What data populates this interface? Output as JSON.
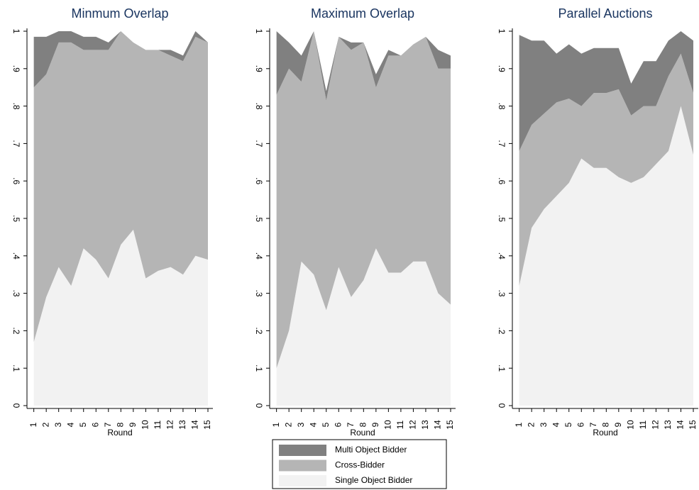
{
  "chart_data": [
    {
      "type": "area",
      "title": "Minmum Overlap",
      "xlabel": "Round",
      "x": [
        1,
        2,
        3,
        4,
        5,
        6,
        7,
        8,
        9,
        10,
        11,
        12,
        13,
        14,
        15
      ],
      "xlim": [
        0.45,
        15.4
      ],
      "ylim": [
        0,
        1
      ],
      "yticks": [
        0,
        {
          "value": 0.1,
          "label": ".1"
        },
        {
          "value": 0.2,
          "label": ".2"
        },
        {
          "value": 0.3,
          "label": ".3"
        },
        {
          "value": 0.4,
          "label": ".4"
        },
        {
          "value": 0.5,
          "label": ".5"
        },
        {
          "value": 0.6,
          "label": ".6"
        },
        {
          "value": 0.7,
          "label": ".7"
        },
        {
          "value": 0.8,
          "label": ".8"
        },
        {
          "value": 0.9,
          "label": ".9"
        },
        1
      ],
      "series": [
        {
          "name": "Single Object Bidder",
          "color": "#f2f2f2",
          "values": [
            0.17,
            0.29,
            0.37,
            0.32,
            0.42,
            0.39,
            0.34,
            0.43,
            0.47,
            0.34,
            0.36,
            0.37,
            0.35,
            0.4,
            0.39
          ]
        },
        {
          "name": "Cross-Bidder",
          "color": "#b5b5b5",
          "values": [
            0.68,
            0.595,
            0.6,
            0.65,
            0.53,
            0.56,
            0.61,
            0.57,
            0.5,
            0.61,
            0.59,
            0.565,
            0.57,
            0.585,
            0.58
          ]
        },
        {
          "name": "Multi Object Bidder",
          "color": "#808080",
          "values": [
            0.135,
            0.1,
            0.03,
            0.03,
            0.035,
            0.035,
            0.02,
            0,
            0,
            0,
            0,
            0.015,
            0.015,
            0.015,
            0
          ]
        }
      ]
    },
    {
      "type": "area",
      "title": "Maximum Overlap",
      "xlabel": "Round",
      "x": [
        1,
        2,
        3,
        4,
        5,
        6,
        7,
        8,
        9,
        10,
        11,
        12,
        13,
        14,
        15
      ],
      "xlim": [
        0.45,
        15.4
      ],
      "ylim": [
        0,
        1
      ],
      "yticks": [
        0,
        {
          "value": 0.1,
          "label": ".1"
        },
        {
          "value": 0.2,
          "label": ".2"
        },
        {
          "value": 0.3,
          "label": ".3"
        },
        {
          "value": 0.4,
          "label": ".4"
        },
        {
          "value": 0.5,
          "label": ".5"
        },
        {
          "value": 0.6,
          "label": ".6"
        },
        {
          "value": 0.7,
          "label": ".7"
        },
        {
          "value": 0.8,
          "label": ".8"
        },
        {
          "value": 0.9,
          "label": ".9"
        },
        1
      ],
      "series": [
        {
          "name": "Single Object Bidder",
          "color": "#f2f2f2",
          "values": [
            0.1,
            0.2,
            0.385,
            0.35,
            0.255,
            0.37,
            0.29,
            0.335,
            0.42,
            0.355,
            0.355,
            0.385,
            0.385,
            0.3,
            0.27
          ]
        },
        {
          "name": "Cross-Bidder",
          "color": "#b5b5b5",
          "values": [
            0.73,
            0.7,
            0.48,
            0.65,
            0.56,
            0.615,
            0.66,
            0.635,
            0.43,
            0.58,
            0.58,
            0.58,
            0.6,
            0.6,
            0.63
          ]
        },
        {
          "name": "Multi Object Bidder",
          "color": "#808080",
          "values": [
            0.17,
            0.07,
            0.07,
            0,
            0.025,
            0,
            0.02,
            0,
            0.035,
            0.015,
            0,
            0,
            0,
            0.05,
            0.035
          ]
        }
      ]
    },
    {
      "type": "area",
      "title": "Parallel Auctions",
      "xlabel": "Round",
      "x": [
        1,
        2,
        3,
        4,
        5,
        6,
        7,
        8,
        9,
        10,
        11,
        12,
        13,
        14,
        15
      ],
      "xlim": [
        0.45,
        15.4
      ],
      "ylim": [
        0,
        1
      ],
      "yticks": [
        0,
        {
          "value": 0.1,
          "label": ".1"
        },
        {
          "value": 0.2,
          "label": ".2"
        },
        {
          "value": 0.3,
          "label": ".3"
        },
        {
          "value": 0.4,
          "label": ".4"
        },
        {
          "value": 0.5,
          "label": ".5"
        },
        {
          "value": 0.6,
          "label": ".6"
        },
        {
          "value": 0.7,
          "label": ".7"
        },
        {
          "value": 0.8,
          "label": ".8"
        },
        {
          "value": 0.9,
          "label": ".9"
        },
        1
      ],
      "series": [
        {
          "name": "Single Object Bidder",
          "color": "#f2f2f2",
          "values": [
            0.32,
            0.475,
            0.525,
            0.56,
            0.595,
            0.66,
            0.635,
            0.635,
            0.61,
            0.595,
            0.61,
            0.645,
            0.68,
            0.8,
            0.67
          ]
        },
        {
          "name": "Cross-Bidder",
          "color": "#b5b5b5",
          "values": [
            0.36,
            0.275,
            0.255,
            0.25,
            0.225,
            0.14,
            0.2,
            0.2,
            0.235,
            0.18,
            0.19,
            0.155,
            0.2,
            0.14,
            0.165
          ]
        },
        {
          "name": "Multi Object Bidder",
          "color": "#808080",
          "values": [
            0.31,
            0.225,
            0.195,
            0.13,
            0.145,
            0.14,
            0.12,
            0.12,
            0.11,
            0.085,
            0.12,
            0.12,
            0.095,
            0.06,
            0.14
          ]
        }
      ]
    }
  ]
}
